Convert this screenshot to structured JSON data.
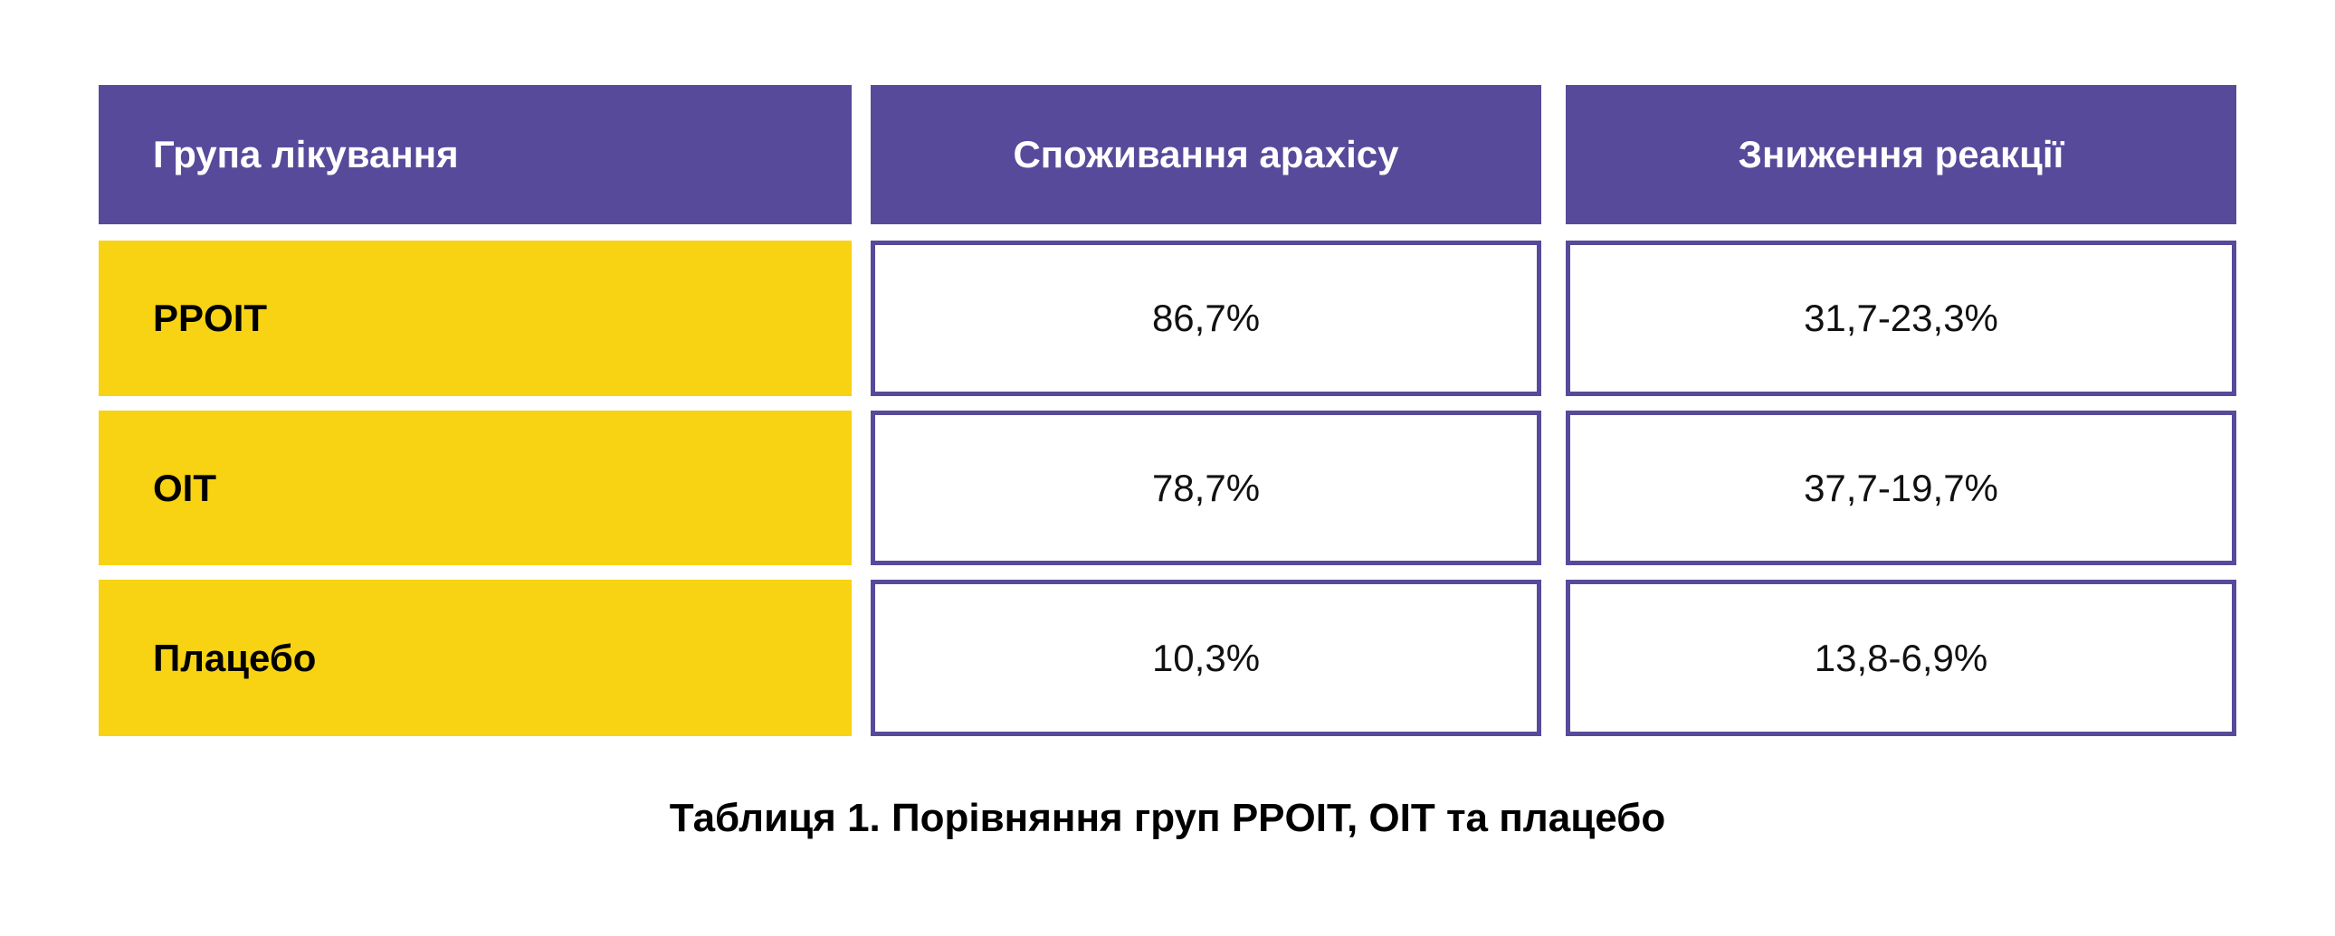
{
  "colors": {
    "header": "#574a9a",
    "group_cell": "#f8d313",
    "border": "#574a9a"
  },
  "table": {
    "headers": [
      "Група лікування",
      "Споживання арахісу",
      "Зниження реакції"
    ],
    "rows": [
      {
        "group": "PPOIT",
        "consumption": "86,7%",
        "reduction": "31,7-23,3%"
      },
      {
        "group": "OIT",
        "consumption": "78,7%",
        "reduction": "37,7-19,7%"
      },
      {
        "group": "Плацебо",
        "consumption": "10,3%",
        "reduction": "13,8-6,9%"
      }
    ]
  },
  "caption": "Таблиця 1. Порівняння груп PPOIT, OIT та плацебо"
}
